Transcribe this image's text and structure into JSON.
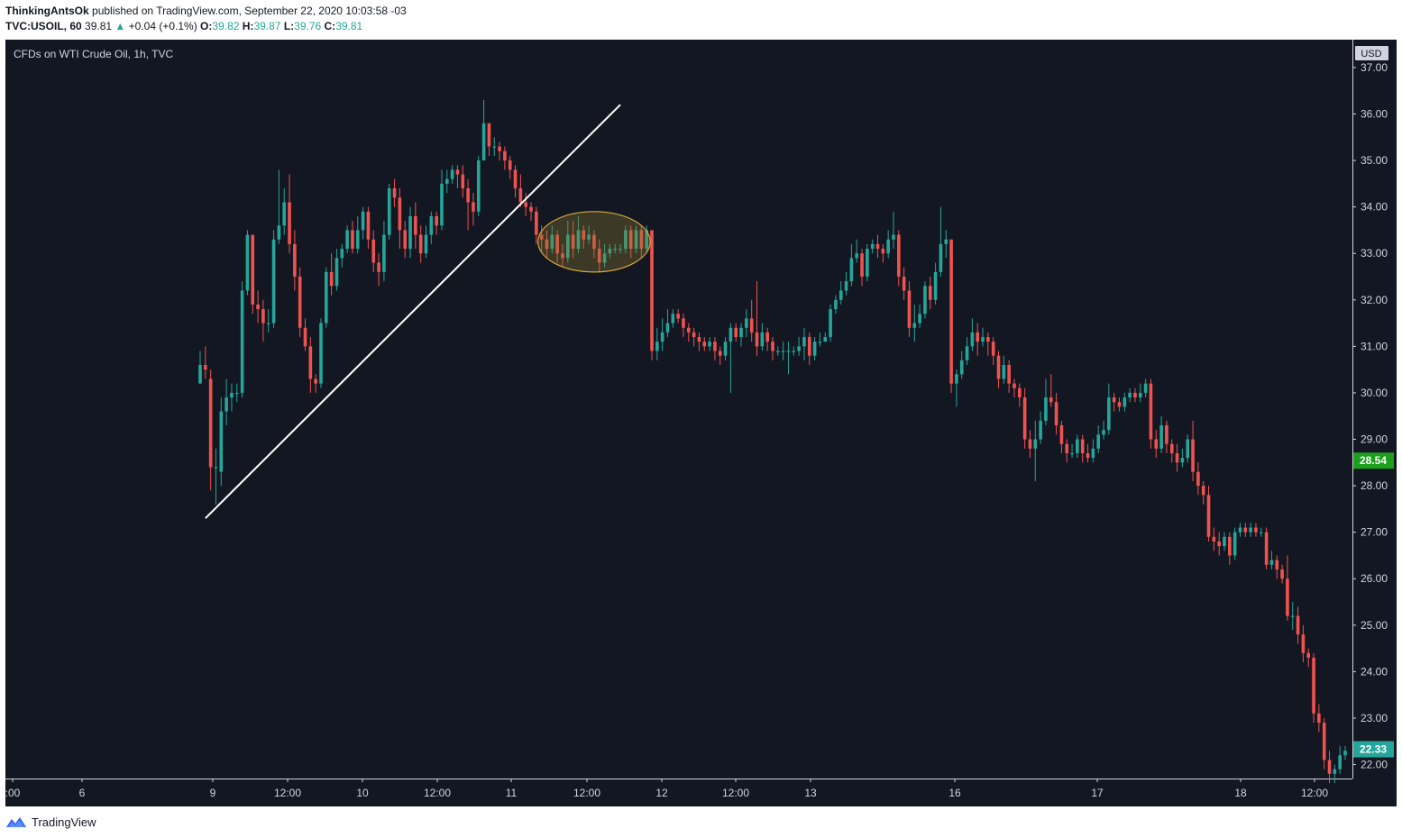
{
  "header": {
    "author": "ThinkingAntsOk",
    "published_text": "published on TradingView.com, September 22, 2020 10:03:58 -03",
    "symbol": "TVC:USOIL, 60",
    "last_price": "39.81",
    "change_arrow": "▲",
    "change": "+0.04 (+0.1%)",
    "o_label": "O:",
    "o_value": "39.82",
    "h_label": "H:",
    "h_value": "39.87",
    "l_label": "L:",
    "l_value": "39.76",
    "c_label": "C:",
    "c_value": "39.81"
  },
  "chart_title": "CFDs on WTI Crude Oil, 1h, TVC",
  "footer": {
    "brand": "TradingView"
  },
  "colors": {
    "background": "#131722",
    "up": "#26a69a",
    "down": "#ef5350",
    "trendline": "#ffffff",
    "ellipse_fill": "#8a7a2f",
    "ellipse_stroke": "#d4a83a",
    "label_green": "#1e9e1e",
    "label_teal": "#26a69a"
  },
  "chart_data": {
    "type": "candlestick",
    "title": "CFDs on WTI Crude Oil, 1h, TVC",
    "currency": "USD",
    "ylim": [
      21.7,
      37.6
    ],
    "y_ticks": [
      "37.00",
      "36.00",
      "35.00",
      "34.00",
      "33.00",
      "32.00",
      "31.00",
      "30.00",
      "29.00",
      "28.00",
      "27.00",
      "26.00",
      "25.00",
      "24.00",
      "23.00",
      "22.00"
    ],
    "x_ticks": [
      ":00",
      "6",
      "9",
      "12:00",
      "10",
      "12:00",
      "11",
      "12:00",
      "12",
      "12:00",
      "13",
      "16",
      "17",
      "18",
      "12:00"
    ],
    "price_labels": [
      {
        "value": 28.54,
        "text": "28.54",
        "color": "green"
      },
      {
        "value": 22.33,
        "text": "22.33",
        "color": "teal"
      }
    ],
    "trendline": {
      "from": [
        1,
        27.3
      ],
      "to": [
        80,
        36.2
      ]
    },
    "consolidation_zone": {
      "from_index": 65,
      "to_index": 85,
      "low": 32.6,
      "high": 33.9
    },
    "candles": [
      [
        30.2,
        30.6,
        30.9,
        30.2
      ],
      [
        30.6,
        30.5,
        31.0,
        30.3
      ],
      [
        30.3,
        28.4,
        30.5,
        27.9
      ],
      [
        28.4,
        28.4,
        28.8,
        27.6
      ],
      [
        28.3,
        29.6,
        29.9,
        28.0
      ],
      [
        29.6,
        29.9,
        30.3,
        29.3
      ],
      [
        29.9,
        30.0,
        30.2,
        29.6
      ],
      [
        30.0,
        30.0,
        30.2,
        29.8
      ],
      [
        30.0,
        32.2,
        32.4,
        29.9
      ],
      [
        32.2,
        33.4,
        33.5,
        32.1
      ],
      [
        33.4,
        31.9,
        33.4,
        31.7
      ],
      [
        31.9,
        31.8,
        32.2,
        31.5
      ],
      [
        31.8,
        31.5,
        32.0,
        31.1
      ],
      [
        31.5,
        31.5,
        31.8,
        31.3
      ],
      [
        31.5,
        33.3,
        33.5,
        31.4
      ],
      [
        33.3,
        33.6,
        34.8,
        33.2
      ],
      [
        33.6,
        34.1,
        34.4,
        33.4
      ],
      [
        34.1,
        33.2,
        34.7,
        33.0
      ],
      [
        33.2,
        32.5,
        33.5,
        32.2
      ],
      [
        32.5,
        31.4,
        32.7,
        31.2
      ],
      [
        31.4,
        31.0,
        31.6,
        30.9
      ],
      [
        31.0,
        30.3,
        31.2,
        30.0
      ],
      [
        30.3,
        30.2,
        30.4,
        30.0
      ],
      [
        30.2,
        31.5,
        31.6,
        30.1
      ],
      [
        31.5,
        32.6,
        32.7,
        31.4
      ],
      [
        32.6,
        32.3,
        33.0,
        32.1
      ],
      [
        32.3,
        32.9,
        33.1,
        32.2
      ],
      [
        32.9,
        33.1,
        33.2,
        32.7
      ],
      [
        33.1,
        33.5,
        33.6,
        33.0
      ],
      [
        33.5,
        33.1,
        33.7,
        33.0
      ],
      [
        33.1,
        33.5,
        33.8,
        33.0
      ],
      [
        33.5,
        33.9,
        34.0,
        33.3
      ],
      [
        33.9,
        33.3,
        34.0,
        33.1
      ],
      [
        33.3,
        32.8,
        33.5,
        32.6
      ],
      [
        32.8,
        32.6,
        33.0,
        32.3
      ],
      [
        32.6,
        33.4,
        33.7,
        32.4
      ],
      [
        33.4,
        34.4,
        34.5,
        33.3
      ],
      [
        34.4,
        34.2,
        34.6,
        34.0
      ],
      [
        34.2,
        33.5,
        34.4,
        33.1
      ],
      [
        33.5,
        33.1,
        33.7,
        32.9
      ],
      [
        33.1,
        33.8,
        34.0,
        32.9
      ],
      [
        33.8,
        33.4,
        34.1,
        33.1
      ],
      [
        33.4,
        33.0,
        33.6,
        32.8
      ],
      [
        33.0,
        33.4,
        33.6,
        32.9
      ],
      [
        33.4,
        33.8,
        33.9,
        33.2
      ],
      [
        33.8,
        33.6,
        33.9,
        33.4
      ],
      [
        33.6,
        34.5,
        34.8,
        33.5
      ],
      [
        34.5,
        34.6,
        34.8,
        34.3
      ],
      [
        34.6,
        34.8,
        34.9,
        34.5
      ],
      [
        34.8,
        34.7,
        34.9,
        34.4
      ],
      [
        34.7,
        34.4,
        34.9,
        34.2
      ],
      [
        34.4,
        34.1,
        34.6,
        33.5
      ],
      [
        34.1,
        33.9,
        34.3,
        33.6
      ],
      [
        33.9,
        35.0,
        35.1,
        33.8
      ],
      [
        35.0,
        35.8,
        36.3,
        35.0
      ],
      [
        35.8,
        35.3,
        35.8,
        35.1
      ],
      [
        35.3,
        35.3,
        35.5,
        35.1
      ],
      [
        35.3,
        35.2,
        35.4,
        35.0
      ],
      [
        35.2,
        35.0,
        35.3,
        34.8
      ],
      [
        35.0,
        34.8,
        35.1,
        34.6
      ],
      [
        34.8,
        34.4,
        34.9,
        34.2
      ],
      [
        34.4,
        34.1,
        34.7,
        34.0
      ],
      [
        34.1,
        34.0,
        34.3,
        33.8
      ],
      [
        34.0,
        33.9,
        34.1,
        33.7
      ],
      [
        33.9,
        33.4,
        34.0,
        33.2
      ],
      [
        33.4,
        33.3,
        33.6,
        33.0
      ],
      [
        33.3,
        33.1,
        33.5,
        32.9
      ],
      [
        33.1,
        33.4,
        33.6,
        33.0
      ],
      [
        33.4,
        33.0,
        33.5,
        32.8
      ],
      [
        33.0,
        32.9,
        33.2,
        32.7
      ],
      [
        32.9,
        33.4,
        33.7,
        32.8
      ],
      [
        33.4,
        33.1,
        33.7,
        32.9
      ],
      [
        33.1,
        33.5,
        33.8,
        33.0
      ],
      [
        33.5,
        33.3,
        33.6,
        33.1
      ],
      [
        33.3,
        33.4,
        33.6,
        33.2
      ],
      [
        33.4,
        33.1,
        33.5,
        32.9
      ],
      [
        33.1,
        32.8,
        33.3,
        32.6
      ],
      [
        32.8,
        33.0,
        33.2,
        32.7
      ],
      [
        33.0,
        33.1,
        33.2,
        32.9
      ],
      [
        33.1,
        33.1,
        33.2,
        33.0
      ],
      [
        33.1,
        33.1,
        33.2,
        33.0
      ],
      [
        33.1,
        33.5,
        33.6,
        33.0
      ],
      [
        33.5,
        33.1,
        33.6,
        32.9
      ],
      [
        33.1,
        33.5,
        33.6,
        33.0
      ],
      [
        33.5,
        33.1,
        33.6,
        32.9
      ],
      [
        33.1,
        33.5,
        33.6,
        33.0
      ],
      [
        33.5,
        30.9,
        33.5,
        30.7
      ],
      [
        30.9,
        31.1,
        31.4,
        30.7
      ],
      [
        31.1,
        31.3,
        31.6,
        30.9
      ],
      [
        31.3,
        31.5,
        31.8,
        31.2
      ],
      [
        31.5,
        31.7,
        31.8,
        31.4
      ],
      [
        31.7,
        31.6,
        31.8,
        31.5
      ],
      [
        31.6,
        31.4,
        31.7,
        31.2
      ],
      [
        31.4,
        31.3,
        31.5,
        31.1
      ],
      [
        31.3,
        31.2,
        31.4,
        31.0
      ],
      [
        31.2,
        31.1,
        31.3,
        30.9
      ],
      [
        31.1,
        31.0,
        31.2,
        30.9
      ],
      [
        31.0,
        31.1,
        31.2,
        30.9
      ],
      [
        31.1,
        30.9,
        31.2,
        30.7
      ],
      [
        30.9,
        30.8,
        31.0,
        30.6
      ],
      [
        30.8,
        31.1,
        31.2,
        30.7
      ],
      [
        31.1,
        31.4,
        31.5,
        30.0
      ],
      [
        31.4,
        31.2,
        31.5,
        31.1
      ],
      [
        31.2,
        31.4,
        31.5,
        31.0
      ],
      [
        31.4,
        31.6,
        31.8,
        31.2
      ],
      [
        31.6,
        31.3,
        32.0,
        31.1
      ],
      [
        31.3,
        31.0,
        32.4,
        30.8
      ],
      [
        31.0,
        31.3,
        31.5,
        30.9
      ],
      [
        31.3,
        31.1,
        31.4,
        30.9
      ],
      [
        31.1,
        30.9,
        31.2,
        30.7
      ],
      [
        30.9,
        30.9,
        31.0,
        30.8
      ],
      [
        30.9,
        30.9,
        31.1,
        30.7
      ],
      [
        30.9,
        30.9,
        31.1,
        30.4
      ],
      [
        30.9,
        30.9,
        31.0,
        30.8
      ],
      [
        30.9,
        31.0,
        31.2,
        30.8
      ],
      [
        31.0,
        31.2,
        31.4,
        30.7
      ],
      [
        31.2,
        30.8,
        31.3,
        30.6
      ],
      [
        30.8,
        31.1,
        31.2,
        30.7
      ],
      [
        31.1,
        31.1,
        31.3,
        31.0
      ],
      [
        31.1,
        31.2,
        31.3,
        31.1
      ],
      [
        31.2,
        31.8,
        31.9,
        31.1
      ],
      [
        31.8,
        32.0,
        32.1,
        31.7
      ],
      [
        32.0,
        32.2,
        32.4,
        31.9
      ],
      [
        32.2,
        32.4,
        32.6,
        32.1
      ],
      [
        32.4,
        32.9,
        33.2,
        32.3
      ],
      [
        32.9,
        33.0,
        33.3,
        32.8
      ],
      [
        33.0,
        32.5,
        33.1,
        32.3
      ],
      [
        32.5,
        33.1,
        33.2,
        32.4
      ],
      [
        33.1,
        33.2,
        33.3,
        33.0
      ],
      [
        33.2,
        33.1,
        33.4,
        32.9
      ],
      [
        33.1,
        33.0,
        33.2,
        32.8
      ],
      [
        33.0,
        33.3,
        33.5,
        32.9
      ],
      [
        33.3,
        33.4,
        33.9,
        33.1
      ],
      [
        33.4,
        32.5,
        33.5,
        32.3
      ],
      [
        32.5,
        32.2,
        32.7,
        32.0
      ],
      [
        32.2,
        31.4,
        32.4,
        31.2
      ],
      [
        31.4,
        31.5,
        31.9,
        31.1
      ],
      [
        31.5,
        31.7,
        31.9,
        31.4
      ],
      [
        31.7,
        32.3,
        32.4,
        31.6
      ],
      [
        32.3,
        32.0,
        32.5,
        31.8
      ],
      [
        32.0,
        32.6,
        32.8,
        31.9
      ],
      [
        32.6,
        33.2,
        34.0,
        32.5
      ],
      [
        33.2,
        33.3,
        33.5,
        32.9
      ],
      [
        33.3,
        30.2,
        33.3,
        30.0
      ],
      [
        30.2,
        30.4,
        30.5,
        29.7
      ],
      [
        30.4,
        30.7,
        30.9,
        30.3
      ],
      [
        30.7,
        31.0,
        31.2,
        30.6
      ],
      [
        31.0,
        31.3,
        31.6,
        30.9
      ],
      [
        31.3,
        31.1,
        31.5,
        30.8
      ],
      [
        31.1,
        31.2,
        31.4,
        31.0
      ],
      [
        31.2,
        31.1,
        31.3,
        30.8
      ],
      [
        31.1,
        30.8,
        31.2,
        30.6
      ],
      [
        30.8,
        30.3,
        30.9,
        30.1
      ],
      [
        30.3,
        30.6,
        30.8,
        30.2
      ],
      [
        30.6,
        30.2,
        30.7,
        30.0
      ],
      [
        30.2,
        30.1,
        30.3,
        29.9
      ],
      [
        30.1,
        29.9,
        30.2,
        29.7
      ],
      [
        29.9,
        29.0,
        30.1,
        28.8
      ],
      [
        29.0,
        28.8,
        29.2,
        28.6
      ],
      [
        28.8,
        29.0,
        29.4,
        28.1
      ],
      [
        29.0,
        29.4,
        29.6,
        28.9
      ],
      [
        29.4,
        29.9,
        30.3,
        29.3
      ],
      [
        29.9,
        29.8,
        30.4,
        29.7
      ],
      [
        29.8,
        29.3,
        30.0,
        29.1
      ],
      [
        29.3,
        28.9,
        29.4,
        28.7
      ],
      [
        28.9,
        28.7,
        29.0,
        28.5
      ],
      [
        28.7,
        28.7,
        28.9,
        28.6
      ],
      [
        28.7,
        29.0,
        29.1,
        28.6
      ],
      [
        29.0,
        28.7,
        29.1,
        28.5
      ],
      [
        28.7,
        28.6,
        28.9,
        28.5
      ],
      [
        28.6,
        28.8,
        29.0,
        28.5
      ],
      [
        28.8,
        29.1,
        29.3,
        28.7
      ],
      [
        29.1,
        29.2,
        29.4,
        29.0
      ],
      [
        29.2,
        29.9,
        30.2,
        29.1
      ],
      [
        29.9,
        29.8,
        30.0,
        29.6
      ],
      [
        29.8,
        29.7,
        29.9,
        29.6
      ],
      [
        29.7,
        29.9,
        30.0,
        29.6
      ],
      [
        29.9,
        30.0,
        30.1,
        29.8
      ],
      [
        30.0,
        29.9,
        30.1,
        29.8
      ],
      [
        29.9,
        30.0,
        30.2,
        29.8
      ],
      [
        30.0,
        30.2,
        30.3,
        29.9
      ],
      [
        30.2,
        29.0,
        30.3,
        28.8
      ],
      [
        29.0,
        28.8,
        29.2,
        28.6
      ],
      [
        28.8,
        29.3,
        29.5,
        28.7
      ],
      [
        29.3,
        28.9,
        29.4,
        28.7
      ],
      [
        28.9,
        28.7,
        29.0,
        28.5
      ],
      [
        28.7,
        28.5,
        28.9,
        28.3
      ],
      [
        28.5,
        28.6,
        28.8,
        28.4
      ],
      [
        28.6,
        29.0,
        29.1,
        28.5
      ],
      [
        29.0,
        28.3,
        29.4,
        28.1
      ],
      [
        28.3,
        28.0,
        28.5,
        27.8
      ],
      [
        28.0,
        27.8,
        28.1,
        27.6
      ],
      [
        27.8,
        26.9,
        28.0,
        26.8
      ],
      [
        26.9,
        26.8,
        27.1,
        26.6
      ],
      [
        26.8,
        26.7,
        27.0,
        26.5
      ],
      [
        26.7,
        26.9,
        27.0,
        26.6
      ],
      [
        26.9,
        26.5,
        27.0,
        26.3
      ],
      [
        26.5,
        27.0,
        27.1,
        26.4
      ],
      [
        27.0,
        27.1,
        27.2,
        26.9
      ],
      [
        27.1,
        27.0,
        27.2,
        26.9
      ],
      [
        27.0,
        27.1,
        27.2,
        26.9
      ],
      [
        27.1,
        27.0,
        27.2,
        26.9
      ],
      [
        27.0,
        27.0,
        27.1,
        26.9
      ],
      [
        27.0,
        26.3,
        27.1,
        26.2
      ],
      [
        26.3,
        26.4,
        26.6,
        26.2
      ],
      [
        26.4,
        26.2,
        26.5,
        26.0
      ],
      [
        26.2,
        26.0,
        26.3,
        25.9
      ],
      [
        26.0,
        25.2,
        26.5,
        25.1
      ],
      [
        25.2,
        25.2,
        25.5,
        24.9
      ],
      [
        25.2,
        24.8,
        25.4,
        24.6
      ],
      [
        24.8,
        24.4,
        25.0,
        24.2
      ],
      [
        24.4,
        24.3,
        24.5,
        24.1
      ],
      [
        24.3,
        23.1,
        24.4,
        22.9
      ],
      [
        23.1,
        22.9,
        23.3,
        22.7
      ],
      [
        22.9,
        22.1,
        23.0,
        21.9
      ],
      [
        22.1,
        21.8,
        22.3,
        21.6
      ],
      [
        21.8,
        21.9,
        22.0,
        21.6
      ],
      [
        21.9,
        22.2,
        22.4,
        21.8
      ],
      [
        22.2,
        22.3,
        22.4,
        22.1
      ]
    ]
  }
}
